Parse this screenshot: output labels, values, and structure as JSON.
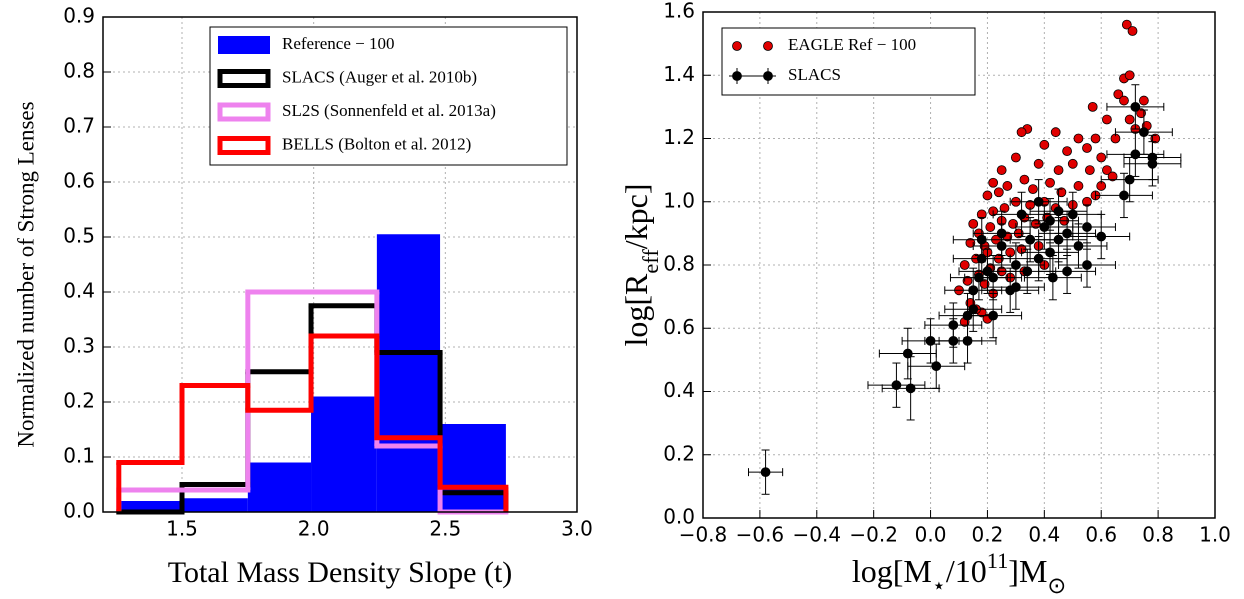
{
  "chart_data": [
    {
      "type": "histogram",
      "x_label": "Total Mass Density Slope (t)",
      "y_label": "Normalized number of Strong Lenses",
      "bins": [
        1.26,
        1.5,
        1.75,
        1.99,
        2.24,
        2.48,
        2.73
      ],
      "series": [
        {
          "name": "Reference − 100",
          "color": "#0000ff",
          "style": "filled",
          "values": [
            0.02,
            0.025,
            0.09,
            0.21,
            0.505,
            0.16
          ]
        },
        {
          "name": "SLACS (Auger et al. 2010b)",
          "color": "#000000",
          "style": "step",
          "values": [
            0,
            0.05,
            0.255,
            0.375,
            0.29,
            0.035
          ]
        },
        {
          "name": "SL2S (Sonnenfeld et al. 2013a)",
          "color": "#ee82ee",
          "style": "step",
          "values": [
            0.04,
            0.04,
            0.4,
            0.4,
            0.12,
            0
          ]
        },
        {
          "name": "BELLS (Bolton et al. 2012)",
          "color": "#ff0000",
          "style": "step",
          "values": [
            0.09,
            0.23,
            0.185,
            0.32,
            0.135,
            0.045
          ]
        }
      ],
      "xlim": [
        1.2,
        3.0
      ],
      "xticks": [
        1.5,
        {
          "value": 2.0,
          "label": "2.0"
        },
        2.5,
        {
          "value": 3.0,
          "label": "3.0"
        }
      ],
      "ylim": [
        0,
        0.9
      ],
      "yticks": [
        {
          "value": 0,
          "label": "0.0"
        },
        0.1,
        0.2,
        0.3,
        0.4,
        0.5,
        0.6,
        0.7,
        0.8,
        0.9
      ],
      "grid": true,
      "legend": "upper right"
    },
    {
      "type": "scatter",
      "x_label": [
        "log[M",
        "⋆",
        "/10",
        "11",
        "]M",
        "⊙"
      ],
      "y_label": [
        "log[R",
        "eff",
        "/kpc]"
      ],
      "series": [
        {
          "name": "EAGLE Ref − 100",
          "color": "#e00000",
          "x": [
            0.69,
            0.71,
            0.68,
            0.7,
            0.66,
            0.68,
            0.75,
            0.62,
            0.7,
            0.72,
            0.76,
            0.74,
            0.65,
            0.58,
            0.52,
            0.44,
            0.34,
            0.32,
            0.4,
            0.48,
            0.55,
            0.6,
            0.62,
            0.56,
            0.5,
            0.45,
            0.38,
            0.3,
            0.25,
            0.22,
            0.27,
            0.33,
            0.36,
            0.42,
            0.46,
            0.52,
            0.55,
            0.58,
            0.5,
            0.44,
            0.4,
            0.35,
            0.3,
            0.26,
            0.22,
            0.18,
            0.2,
            0.24,
            0.15,
            0.17,
            0.21,
            0.25,
            0.29,
            0.33,
            0.37,
            0.41,
            0.47,
            0.14,
            0.19,
            0.23,
            0.27,
            0.31,
            0.35,
            0.12,
            0.16,
            0.2,
            0.24,
            0.28,
            0.32,
            0.38,
            0.13,
            0.17,
            0.21,
            0.25,
            0.15,
            0.19,
            0.22,
            0.1,
            0.14,
            0.18,
            0.2,
            0.16,
            0.12,
            0.28,
            0.33,
            0.4,
            0.6,
            0.64,
            0.57,
            0.79
          ],
          "values": [
            1.56,
            1.54,
            1.39,
            1.4,
            1.34,
            1.32,
            1.32,
            1.26,
            1.26,
            1.23,
            1.24,
            1.28,
            1.2,
            1.2,
            1.2,
            1.22,
            1.23,
            1.22,
            1.18,
            1.16,
            1.17,
            1.14,
            1.1,
            1.1,
            1.12,
            1.1,
            1.12,
            1.14,
            1.1,
            1.06,
            1.05,
            1.07,
            1.04,
            1.06,
            1.03,
            1.05,
            1.0,
            1.02,
            0.99,
            0.98,
            1.0,
            0.99,
            1.0,
            0.98,
            0.97,
            0.96,
            1.02,
            1.03,
            0.93,
            0.9,
            0.92,
            0.94,
            0.93,
            0.95,
            0.93,
            0.95,
            0.94,
            0.87,
            0.86,
            0.88,
            0.89,
            0.9,
            0.88,
            0.8,
            0.82,
            0.84,
            0.82,
            0.84,
            0.85,
            0.86,
            0.75,
            0.77,
            0.79,
            0.78,
            0.72,
            0.74,
            0.71,
            0.72,
            0.68,
            0.65,
            0.63,
            0.66,
            0.62,
            0.76,
            0.78,
            0.8,
            1.05,
            1.08,
            1.3,
            1.2
          ]
        },
        {
          "name": "SLACS",
          "color": "#000000",
          "x": [
            -0.58,
            -0.12,
            -0.08,
            -0.07,
            0.02,
            0.0,
            0.08,
            0.08,
            0.13,
            0.13,
            0.15,
            0.15,
            0.17,
            0.18,
            0.18,
            0.2,
            0.22,
            0.22,
            0.25,
            0.25,
            0.28,
            0.3,
            0.32,
            0.34,
            0.35,
            0.38,
            0.4,
            0.42,
            0.43,
            0.45,
            0.45,
            0.48,
            0.48,
            0.5,
            0.52,
            0.55,
            0.55,
            0.6,
            0.68,
            0.7,
            0.72,
            0.72,
            0.75,
            0.78,
            0.78,
            0.42,
            0.38,
            0.3
          ],
          "values": [
            0.145,
            0.42,
            0.52,
            0.41,
            0.48,
            0.56,
            0.61,
            0.56,
            0.64,
            0.56,
            0.66,
            0.72,
            0.76,
            0.82,
            0.88,
            0.78,
            0.64,
            0.76,
            0.9,
            0.86,
            0.72,
            0.8,
            0.96,
            0.78,
            0.88,
            0.82,
            0.92,
            0.84,
            0.76,
            0.97,
            0.88,
            0.78,
            0.9,
            0.96,
            0.86,
            0.8,
            0.92,
            0.89,
            1.02,
            1.07,
            1.15,
            1.3,
            1.22,
            1.14,
            1.12,
            0.94,
            1.0,
            0.73
          ],
          "xerr": [
            0.06,
            0.1,
            0.1,
            0.1,
            0.1,
            0.1,
            0.1,
            0.1,
            0.1,
            0.1,
            0.1,
            0.1,
            0.1,
            0.1,
            0.1,
            0.1,
            0.1,
            0.1,
            0.1,
            0.1,
            0.1,
            0.1,
            0.1,
            0.1,
            0.1,
            0.1,
            0.1,
            0.1,
            0.1,
            0.1,
            0.1,
            0.1,
            0.1,
            0.1,
            0.1,
            0.1,
            0.1,
            0.1,
            0.1,
            0.1,
            0.1,
            0.1,
            0.1,
            0.1,
            0.1,
            0.1,
            0.1,
            0.1
          ],
          "yerr": [
            0.07,
            0.07,
            0.08,
            0.1,
            0.07,
            0.07,
            0.07,
            0.07,
            0.07,
            0.07,
            0.07,
            0.07,
            0.07,
            0.07,
            0.07,
            0.07,
            0.07,
            0.07,
            0.07,
            0.07,
            0.07,
            0.07,
            0.07,
            0.07,
            0.07,
            0.07,
            0.07,
            0.07,
            0.07,
            0.07,
            0.07,
            0.07,
            0.07,
            0.07,
            0.07,
            0.07,
            0.07,
            0.07,
            0.07,
            0.07,
            0.07,
            0.07,
            0.07,
            0.07,
            0.07,
            0.07,
            0.07,
            0.07
          ]
        }
      ],
      "xlim": [
        -0.8,
        1.0
      ],
      "xticks": [
        {
          "value": -0.8,
          "label": "−0.8"
        },
        {
          "value": -0.6,
          "label": "−0.6"
        },
        {
          "value": -0.4,
          "label": "−0.4"
        },
        {
          "value": -0.2,
          "label": "−0.2"
        },
        {
          "value": 0,
          "label": "0.0"
        },
        0.2,
        0.4,
        0.6,
        0.8,
        {
          "value": 1.0,
          "label": "1.0"
        }
      ],
      "ylim": [
        0,
        1.6
      ],
      "yticks": [
        {
          "value": 0,
          "label": "0.0"
        },
        0.2,
        0.4,
        0.6,
        0.8,
        {
          "value": 1.0,
          "label": "1.0"
        },
        1.2,
        1.4,
        1.6
      ],
      "grid": true,
      "legend": "upper left"
    }
  ]
}
